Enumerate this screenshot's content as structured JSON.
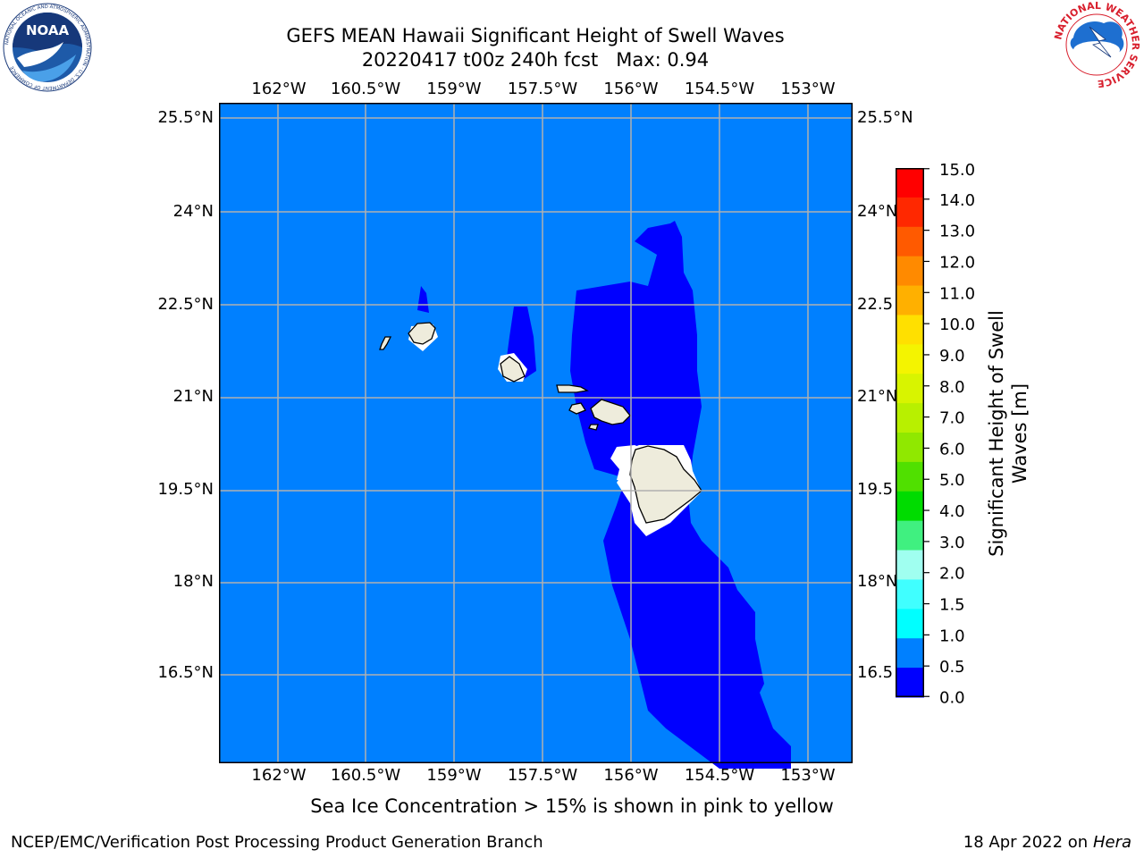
{
  "header": {
    "title_line1": "GEFS MEAN Hawaii Significant Height of Swell Waves",
    "title_line2": "20220417 t00z 240h fcst   Max: 0.94"
  },
  "logos": {
    "left_logo_text": "NOAA",
    "left_ring_text": "NATIONAL OCEANIC AND ATMOSPHERIC ADMINISTRATION · U.S. DEPARTMENT OF COMMERCE",
    "right_ring_text": "NATIONAL WEATHER SERVICE"
  },
  "map": {
    "lon_labels": [
      "162°W",
      "160.5°W",
      "159°W",
      "157.5°W",
      "156°W",
      "154.5°W",
      "153°W"
    ],
    "lat_labels": [
      "25.5°N",
      "24°N",
      "22.5°N",
      "21°N",
      "19.5°N",
      "18°N",
      "16.5°N"
    ],
    "lat_labels_right": [
      "25.5°N",
      "24°N",
      "22.5",
      "21°N",
      "19.5",
      "18°N",
      "16.5"
    ],
    "colors": {
      "ocean": "#0080ff",
      "swell_low": "#0000ff",
      "land": "#eeecdc",
      "grid": "#b0b0b0"
    }
  },
  "colorbar": {
    "ticks": [
      "15.0",
      "14.0",
      "13.0",
      "12.0",
      "11.0",
      "10.0",
      "9.0",
      "8.0",
      "7.0",
      "6.0",
      "5.0",
      "4.0",
      "3.0",
      "2.0",
      "1.5",
      "1.0",
      "0.5",
      "0.0"
    ],
    "colors_top_to_bottom": [
      "#ff0000",
      "#ff2800",
      "#ff5a00",
      "#ff8a00",
      "#ffb000",
      "#ffe000",
      "#f4f400",
      "#d8f400",
      "#b8f000",
      "#90e800",
      "#50e000",
      "#00dc00",
      "#40f080",
      "#a0fff0",
      "#40ffff",
      "#00ffff",
      "#0080ff",
      "#0000ff"
    ],
    "label_line1": "Significant Height of Swell",
    "label_line2": "Waves [m]"
  },
  "footer": {
    "note": "Sea Ice Concentration > 15% is shown in pink to yellow",
    "credit": "NCEP/EMC/Verification Post Processing Product Generation Branch",
    "date": "18 Apr 2022 on ",
    "machine": "Hera"
  }
}
